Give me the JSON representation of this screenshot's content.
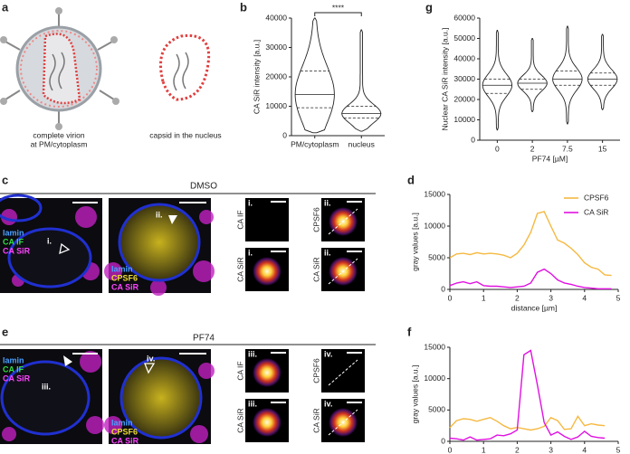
{
  "panels": {
    "letters": [
      "a",
      "b",
      "c",
      "d",
      "e",
      "f",
      "g"
    ],
    "a": {
      "virion_label": [
        "complete virion",
        "at PM/cytoplasm"
      ],
      "capsid_label": "capsid in the nucleus"
    },
    "c": {
      "title": "DMSO",
      "image1_labels": [
        "lamin",
        "CA IF",
        "CA SiR"
      ],
      "image1_roi": "i.",
      "image2_labels": [
        "lamin",
        "CPSF6",
        "CA SiR"
      ],
      "image2_roi": "ii.",
      "tiles": [
        {
          "roi": "i.",
          "channel": "CA IF"
        },
        {
          "roi": "ii.",
          "channel": "CPSF6"
        },
        {
          "roi": "i.",
          "channel": "CA SiR"
        },
        {
          "roi": "ii.",
          "channel": "CA SiR"
        }
      ]
    },
    "e": {
      "title": "PF74",
      "image1_labels": [
        "lamin",
        "CA IF",
        "CA SiR"
      ],
      "image1_roi": "iii.",
      "image2_labels": [
        "lamin",
        "CPSF6",
        "CA SiR"
      ],
      "image2_roi": "iv.",
      "tiles": [
        {
          "roi": "iii.",
          "channel": "CA IF"
        },
        {
          "roi": "iv.",
          "channel": "CPSF6"
        },
        {
          "roi": "iii.",
          "channel": "CA SiR"
        },
        {
          "roi": "iv.",
          "channel": "CA SiR"
        }
      ]
    }
  },
  "chart_data": [
    {
      "type": "violin",
      "ylabel": "CA SiR intensity [a.u.]",
      "categories": [
        "PM/cytoplasm",
        "nucleus"
      ],
      "min": [
        1000,
        1500
      ],
      "q1": [
        9500,
        6000
      ],
      "median": [
        14000,
        7500
      ],
      "q3": [
        22000,
        10000
      ],
      "max": [
        40000,
        36000
      ],
      "ylim": [
        0,
        40000
      ],
      "yticks": [
        0,
        10000,
        20000,
        30000,
        40000
      ],
      "annotation": "****"
    },
    {
      "type": "violin",
      "ylabel": "Nuclear CA SiR intensity [a.u.]",
      "xlabel": "PF74 [µM]",
      "categories": [
        "0",
        "2",
        "7.5",
        "15"
      ],
      "min": [
        5000,
        14000,
        8000,
        15000
      ],
      "q1": [
        23000,
        25000,
        27000,
        27000
      ],
      "median": [
        27000,
        28000,
        30000,
        30000
      ],
      "q3": [
        30000,
        30000,
        34000,
        33000
      ],
      "max": [
        54000,
        50000,
        56000,
        52000
      ],
      "ylim": [
        0,
        60000
      ],
      "yticks": [
        0,
        10000,
        20000,
        30000,
        40000,
        50000,
        60000
      ]
    },
    {
      "type": "line",
      "ylabel": "gray values [a.u.]",
      "xlabel": "distance [µm]",
      "legend": "top-right",
      "x": [
        0,
        0.2,
        0.4,
        0.6,
        0.8,
        1,
        1.2,
        1.4,
        1.6,
        1.8,
        2,
        2.2,
        2.4,
        2.6,
        2.8,
        3,
        3.2,
        3.4,
        3.6,
        3.8,
        4,
        4.2,
        4.4,
        4.6,
        4.8
      ],
      "series": [
        {
          "name": "CPSF6",
          "color": "#f5b942",
          "values": [
            5000,
            5600,
            5700,
            5500,
            5800,
            5600,
            5700,
            5600,
            5400,
            5000,
            5700,
            7000,
            9000,
            12000,
            12300,
            10000,
            7800,
            7300,
            6500,
            5500,
            4200,
            3500,
            3200,
            2300,
            2200
          ]
        },
        {
          "name": "CA SiR",
          "color": "#e010e0",
          "values": [
            600,
            1000,
            1200,
            900,
            1200,
            600,
            500,
            500,
            400,
            300,
            400,
            500,
            1000,
            2700,
            3200,
            2500,
            1500,
            1000,
            800,
            500,
            300,
            200,
            100,
            100,
            100
          ]
        }
      ],
      "xlim": [
        0,
        5
      ],
      "xticks": [
        0,
        1,
        2,
        3,
        4,
        5
      ],
      "ylim": [
        0,
        15000
      ],
      "yticks": [
        0,
        5000,
        10000,
        15000
      ]
    },
    {
      "type": "line",
      "ylabel": "gray values [a.u.]",
      "xlabel": "distance [µm]",
      "x": [
        0,
        0.2,
        0.4,
        0.6,
        0.8,
        1,
        1.2,
        1.4,
        1.6,
        1.8,
        2,
        2.2,
        2.4,
        2.6,
        2.8,
        3,
        3.2,
        3.4,
        3.6,
        3.8,
        4,
        4.2,
        4.4,
        4.6
      ],
      "series": [
        {
          "name": "CPSF6",
          "color": "#f5b942",
          "values": [
            2200,
            3300,
            3600,
            3500,
            3200,
            3500,
            3800,
            3200,
            2500,
            2000,
            2200,
            2000,
            1800,
            2000,
            2400,
            3800,
            3300,
            1900,
            2000,
            4000,
            2500,
            2800,
            2600,
            2500
          ]
        },
        {
          "name": "CA SiR",
          "color": "#e010e0",
          "values": [
            500,
            400,
            200,
            700,
            200,
            300,
            400,
            1000,
            900,
            1200,
            1800,
            13800,
            14500,
            9000,
            3000,
            1000,
            1500,
            800,
            300,
            700,
            1600,
            800,
            600,
            500
          ]
        }
      ],
      "xlim": [
        0,
        5
      ],
      "xticks": [
        0,
        1,
        2,
        3,
        4,
        5
      ],
      "ylim": [
        0,
        15000
      ],
      "yticks": [
        0,
        5000,
        10000,
        15000
      ]
    }
  ]
}
